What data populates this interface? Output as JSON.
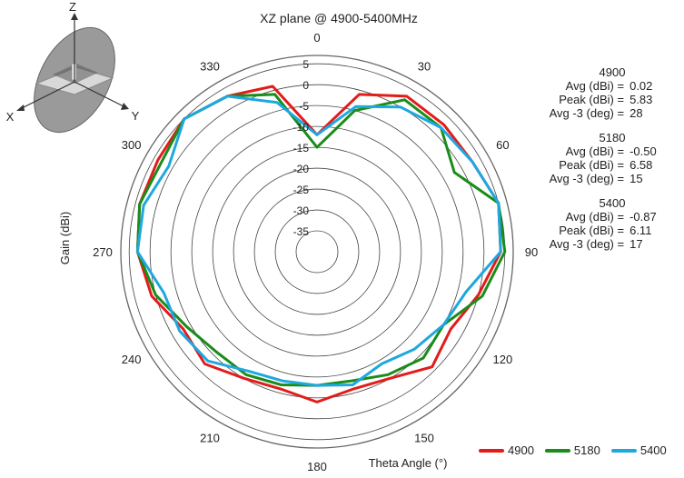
{
  "chart_data": {
    "type": "polar-line",
    "title": "XZ plane @ 4900-5400MHz",
    "xlabel": "Theta Angle (°)",
    "ylabel": "Gain (dBi)",
    "rlim": [
      -40,
      7
    ],
    "r_ticks": [
      5,
      0,
      -5,
      -10,
      -15,
      -20,
      -25,
      -30,
      -35
    ],
    "angle_ticks": [
      0,
      30,
      60,
      90,
      120,
      150,
      180,
      210,
      240,
      270,
      300,
      330
    ],
    "grid": true,
    "legend": "bottom-right",
    "series": [
      {
        "name": "4900",
        "color": "#e31b1b",
        "theta": [
          0,
          15,
          30,
          45,
          60,
          75,
          90,
          105,
          120,
          135,
          150,
          165,
          180,
          195,
          210,
          225,
          240,
          255,
          270,
          285,
          300,
          315,
          330,
          345
        ],
        "values": [
          -12,
          -1,
          3,
          3,
          3,
          5,
          4,
          0,
          -3,
          -1,
          -5,
          -6,
          -4,
          -6,
          -5,
          -2,
          -3,
          1,
          3,
          4,
          4,
          5,
          3,
          1
        ]
      },
      {
        "name": "5180",
        "color": "#1a8c1a",
        "theta": [
          0,
          15,
          30,
          45,
          60,
          75,
          90,
          105,
          120,
          135,
          150,
          165,
          180,
          195,
          210,
          225,
          240,
          255,
          270,
          285,
          300,
          315,
          330,
          345
        ],
        "values": [
          -15,
          -5,
          2,
          2,
          -2,
          5,
          5,
          1,
          -5,
          -4,
          -6,
          -8,
          -8,
          -7,
          -6,
          -6,
          -4,
          0,
          3,
          4,
          3,
          5,
          3,
          -1
        ]
      },
      {
        "name": "5400",
        "color": "#1ea8e0",
        "theta": [
          0,
          15,
          30,
          45,
          60,
          75,
          90,
          105,
          120,
          135,
          150,
          165,
          180,
          195,
          210,
          225,
          240,
          255,
          270,
          285,
          300,
          315,
          330,
          345
        ],
        "values": [
          -12,
          -4,
          0,
          2,
          3,
          5,
          4,
          -3,
          -5,
          -7,
          -9,
          -7,
          -8,
          -8,
          -7,
          -3,
          -2,
          -2,
          3,
          3,
          1,
          5,
          3,
          -3
        ]
      }
    ]
  },
  "stats": [
    {
      "name": "4900",
      "avg_label": "Avg (dBi) =",
      "avg": "0.02",
      "peak_label": "Peak (dBi) =",
      "peak": "5.83",
      "bw_label": "Avg -3 (deg) =",
      "bw": "28"
    },
    {
      "name": "5180",
      "avg_label": "Avg (dBi) =",
      "avg": "-0.50",
      "peak_label": "Peak (dBi) =",
      "peak": "6.58",
      "bw_label": "Avg -3 (deg) =",
      "bw": "15"
    },
    {
      "name": "5400",
      "avg_label": "Avg (dBi) =",
      "avg": "-0.87",
      "peak_label": "Peak (dBi) =",
      "peak": "6.11",
      "bw_label": "Avg -3 (deg) =",
      "bw": "17"
    }
  ],
  "axes_icon": {
    "z": "Z",
    "x": "X",
    "y": "Y"
  }
}
